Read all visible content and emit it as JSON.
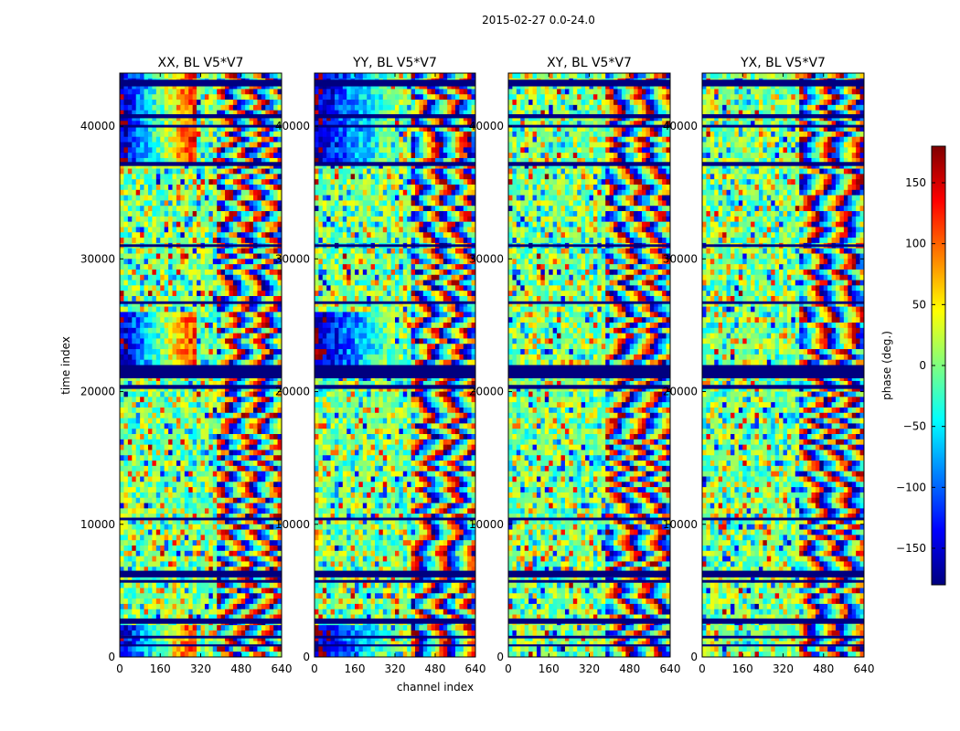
{
  "suptitle": "2015-02-27 0.0-24.0",
  "chart_data": {
    "type": "heatmap",
    "panels": [
      {
        "title": "XX, BL V5*V7",
        "pol": "XX"
      },
      {
        "title": "YY, BL V5*V7",
        "pol": "YY"
      },
      {
        "title": "XY, BL V5*V7",
        "pol": "XY"
      },
      {
        "title": "YX, BL V5*V7",
        "pol": "YX"
      }
    ],
    "xlabel": "channel index",
    "ylabel": "time index",
    "xlim": [
      0,
      640
    ],
    "ylim": [
      0,
      44000
    ],
    "xticks": [
      0,
      160,
      320,
      480,
      640
    ],
    "yticks": [
      0,
      10000,
      20000,
      30000,
      40000
    ],
    "colorbar": {
      "label": "phase (deg.)",
      "range": [
        -180,
        180
      ],
      "ticks": [
        -150,
        -100,
        -50,
        0,
        50,
        100,
        150
      ],
      "colormap": "jet",
      "colors": [
        "#00007f",
        "#0000ff",
        "#007fff",
        "#00ffff",
        "#7fff7f",
        "#ffff00",
        "#ff7f00",
        "#ff0000",
        "#7f0000"
      ]
    },
    "blank_time_bands": [
      [
        43000,
        43500
      ],
      [
        40600,
        40900
      ],
      [
        39900,
        40100
      ],
      [
        37000,
        37300
      ],
      [
        30900,
        31100
      ],
      [
        26600,
        26800
      ],
      [
        21000,
        22000
      ],
      [
        20200,
        20500
      ],
      [
        10300,
        10500
      ],
      [
        6000,
        6500
      ],
      [
        5600,
        5800
      ],
      [
        2500,
        2900
      ],
      [
        1400,
        1600
      ],
      [
        800,
        950
      ]
    ]
  }
}
